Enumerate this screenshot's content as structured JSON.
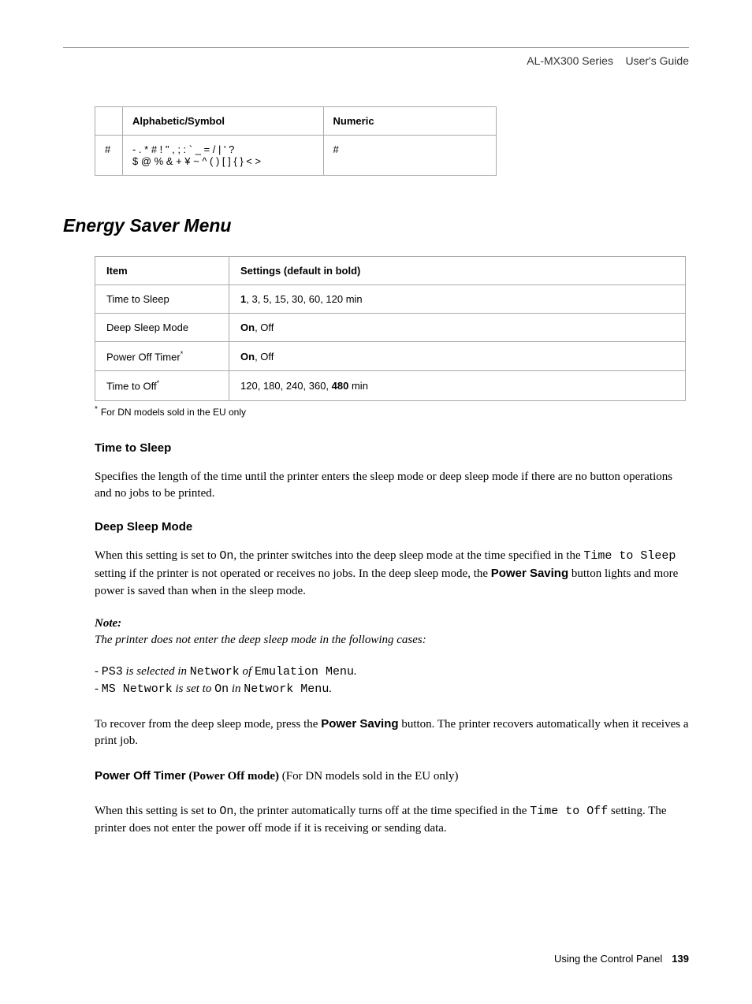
{
  "header": {
    "product": "AL-MX300 Series",
    "doc_title": "User's Guide"
  },
  "table1": {
    "columns": [
      "",
      "Alphabetic/Symbol",
      "Numeric"
    ],
    "rows": [
      [
        "#",
        "- . * # ! \" , ; : ` _ = / | ' ?\n$ @ % & + ¥ ~ ^ ( ) [ ] { } < >",
        "#"
      ]
    ]
  },
  "section": {
    "title": "Energy Saver Menu"
  },
  "table2": {
    "columns": [
      "Item",
      "Settings (default in bold)"
    ],
    "rows": [
      {
        "item": "Time to Sleep",
        "setting_bold": "1",
        "setting_rest": ", 3, 5, 15, 30, 60, 120 min"
      },
      {
        "item": "Deep Sleep Mode",
        "setting_bold": "On",
        "setting_rest": ", Off"
      },
      {
        "item": "Power Off Timer",
        "item_sup": "*",
        "setting_bold": "On",
        "setting_rest": ", Off"
      },
      {
        "item": "Time to Off",
        "item_sup": "*",
        "setting_pre": "120, 180, 240, 360, ",
        "setting_bold": "480",
        "setting_rest": " min"
      }
    ]
  },
  "footnote": {
    "mark": "*",
    "text": "For DN models sold in the EU only"
  },
  "sub1": {
    "title": "Time to Sleep",
    "text": "Specifies the length of the time until the printer enters the sleep mode or deep sleep mode if there are no button operations and no jobs to be printed."
  },
  "sub2": {
    "title": "Deep Sleep Mode",
    "text_pre": "When this setting is set to ",
    "mono1": "On",
    "text_mid1": ", the printer switches into the deep sleep mode at the time specified in the ",
    "mono2": "Time to Sleep",
    "text_mid2": " setting if the printer is not operated or receives no jobs. In the deep sleep mode, the ",
    "bold1": "Power Saving",
    "text_end": " button lights and more power is saved than when in the sleep mode."
  },
  "note": {
    "label": "Note:",
    "text": "The printer does not enter the deep sleep mode in the following cases:",
    "item1_pre": "- ",
    "item1_mono1": "PS3",
    "item1_mid1": " is selected in ",
    "item1_mono2": "Network",
    "item1_mid2": " of ",
    "item1_mono3": "Emulation Menu",
    "item1_end": ".",
    "item2_pre": "- ",
    "item2_mono1": "MS Network",
    "item2_mid1": " is set to ",
    "item2_mono2": "On",
    "item2_mid2": " in ",
    "item2_mono3": "Network Menu",
    "item2_end": "."
  },
  "recover": {
    "text_pre": "To recover from the deep sleep mode, press the ",
    "bold1": "Power Saving",
    "text_end": " button. The printer recovers automatically when it receives a print job."
  },
  "sub3": {
    "title": "Power Off Timer",
    "mode": " (Power Off mode)",
    "extra": " (For DN models sold in the EU only)"
  },
  "sub3_text": {
    "text_pre": "When this setting is set to ",
    "mono1": "On",
    "text_mid1": ", the printer automatically turns off at the time specified in the ",
    "mono2": "Time to Off",
    "text_end": " setting. The printer does not enter the power off mode if it is receiving or sending data."
  },
  "footer": {
    "chapter": "Using the Control Panel",
    "page": "139"
  }
}
